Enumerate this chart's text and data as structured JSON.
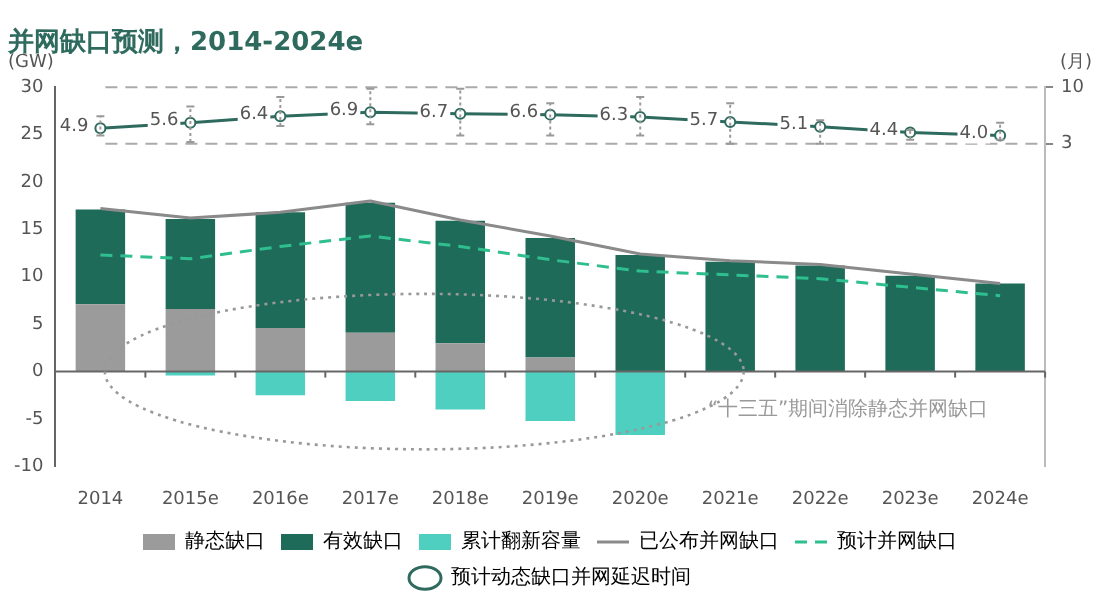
{
  "chart_data": {
    "type": "bar",
    "title": "并网缺口预测，2014-2024e",
    "ylabel": "(GW)",
    "y2label": "(月)",
    "categories": [
      "2014",
      "2015e",
      "2016e",
      "2017e",
      "2018e",
      "2019e",
      "2020e",
      "2021e",
      "2022e",
      "2023e",
      "2024e"
    ],
    "stacked": true,
    "series": [
      {
        "name": "静态缺口",
        "color": "#9b9b9b",
        "values": [
          7.1,
          6.6,
          4.6,
          4.1,
          3.0,
          1.5,
          0,
          0,
          0,
          0,
          0
        ]
      },
      {
        "name": "有效缺口",
        "color": "#1f6b5a",
        "values": [
          10.0,
          9.5,
          12.2,
          13.7,
          12.9,
          12.6,
          12.3,
          11.6,
          11.2,
          10.1,
          9.3
        ]
      },
      {
        "name": "累计翻新容量",
        "color": "#4fcfbf",
        "values": [
          0,
          -0.4,
          -2.5,
          -3.1,
          -4.0,
          -5.2,
          -6.7,
          0,
          0,
          0,
          0
        ]
      },
      {
        "name": "已公布并网缺口",
        "type": "line",
        "color": "#8a8a8a",
        "line_style": "solid",
        "marker": "none",
        "values": [
          17.2,
          16.2,
          16.8,
          18.0,
          16.0,
          14.3,
          12.4,
          11.7,
          11.3,
          10.3,
          9.3
        ]
      },
      {
        "name": "预计并网缺口",
        "type": "line",
        "color": "#2fbf8f",
        "line_style": "dashed",
        "marker": "none",
        "values": [
          12.3,
          11.9,
          13.2,
          14.3,
          13.2,
          11.8,
          10.6,
          10.2,
          9.8,
          8.9,
          8.0
        ]
      },
      {
        "name": "预计动态缺口并网延迟时间",
        "type": "line",
        "axis": "y2",
        "color": "#2e6b5e",
        "line_style": "solid",
        "marker": "circle",
        "values": [
          4.9,
          5.6,
          6.4,
          6.9,
          6.7,
          6.6,
          6.3,
          5.7,
          5.1,
          4.4,
          4.0
        ],
        "value_labels": [
          "4.9",
          "5.6",
          "6.4",
          "6.9",
          "6.7",
          "6.6",
          "6.3",
          "5.7",
          "5.1",
          "4.4",
          "4.0"
        ],
        "errors": [
          [
            4.0,
            6.4
          ],
          [
            3.2,
            7.6
          ],
          [
            5.2,
            8.8
          ],
          [
            5.4,
            9.8
          ],
          [
            4.0,
            9.8
          ],
          [
            4.0,
            8.0
          ],
          [
            4.0,
            8.8
          ],
          [
            3.0,
            8.0
          ],
          [
            3.0,
            5.9
          ],
          [
            3.5,
            4.7
          ],
          [
            3.5,
            5.6
          ]
        ]
      }
    ],
    "ylim": [
      -10,
      30
    ],
    "yticks": [
      -10,
      -5,
      0,
      5,
      10,
      15,
      20,
      25,
      30
    ],
    "y2lim": [
      -37,
      10
    ],
    "y2ticks": [
      3,
      10
    ],
    "ref_lines": [
      {
        "axis": "y2",
        "value": 10,
        "color": "#aaaaaa",
        "line_style": "dashed"
      },
      {
        "axis": "y2",
        "value": 3,
        "color": "#aaaaaa",
        "line_style": "dashed"
      }
    ],
    "annotations": [
      "“十三五”期间消除静态并网缺口"
    ],
    "grid": false,
    "legend": "bottom"
  }
}
